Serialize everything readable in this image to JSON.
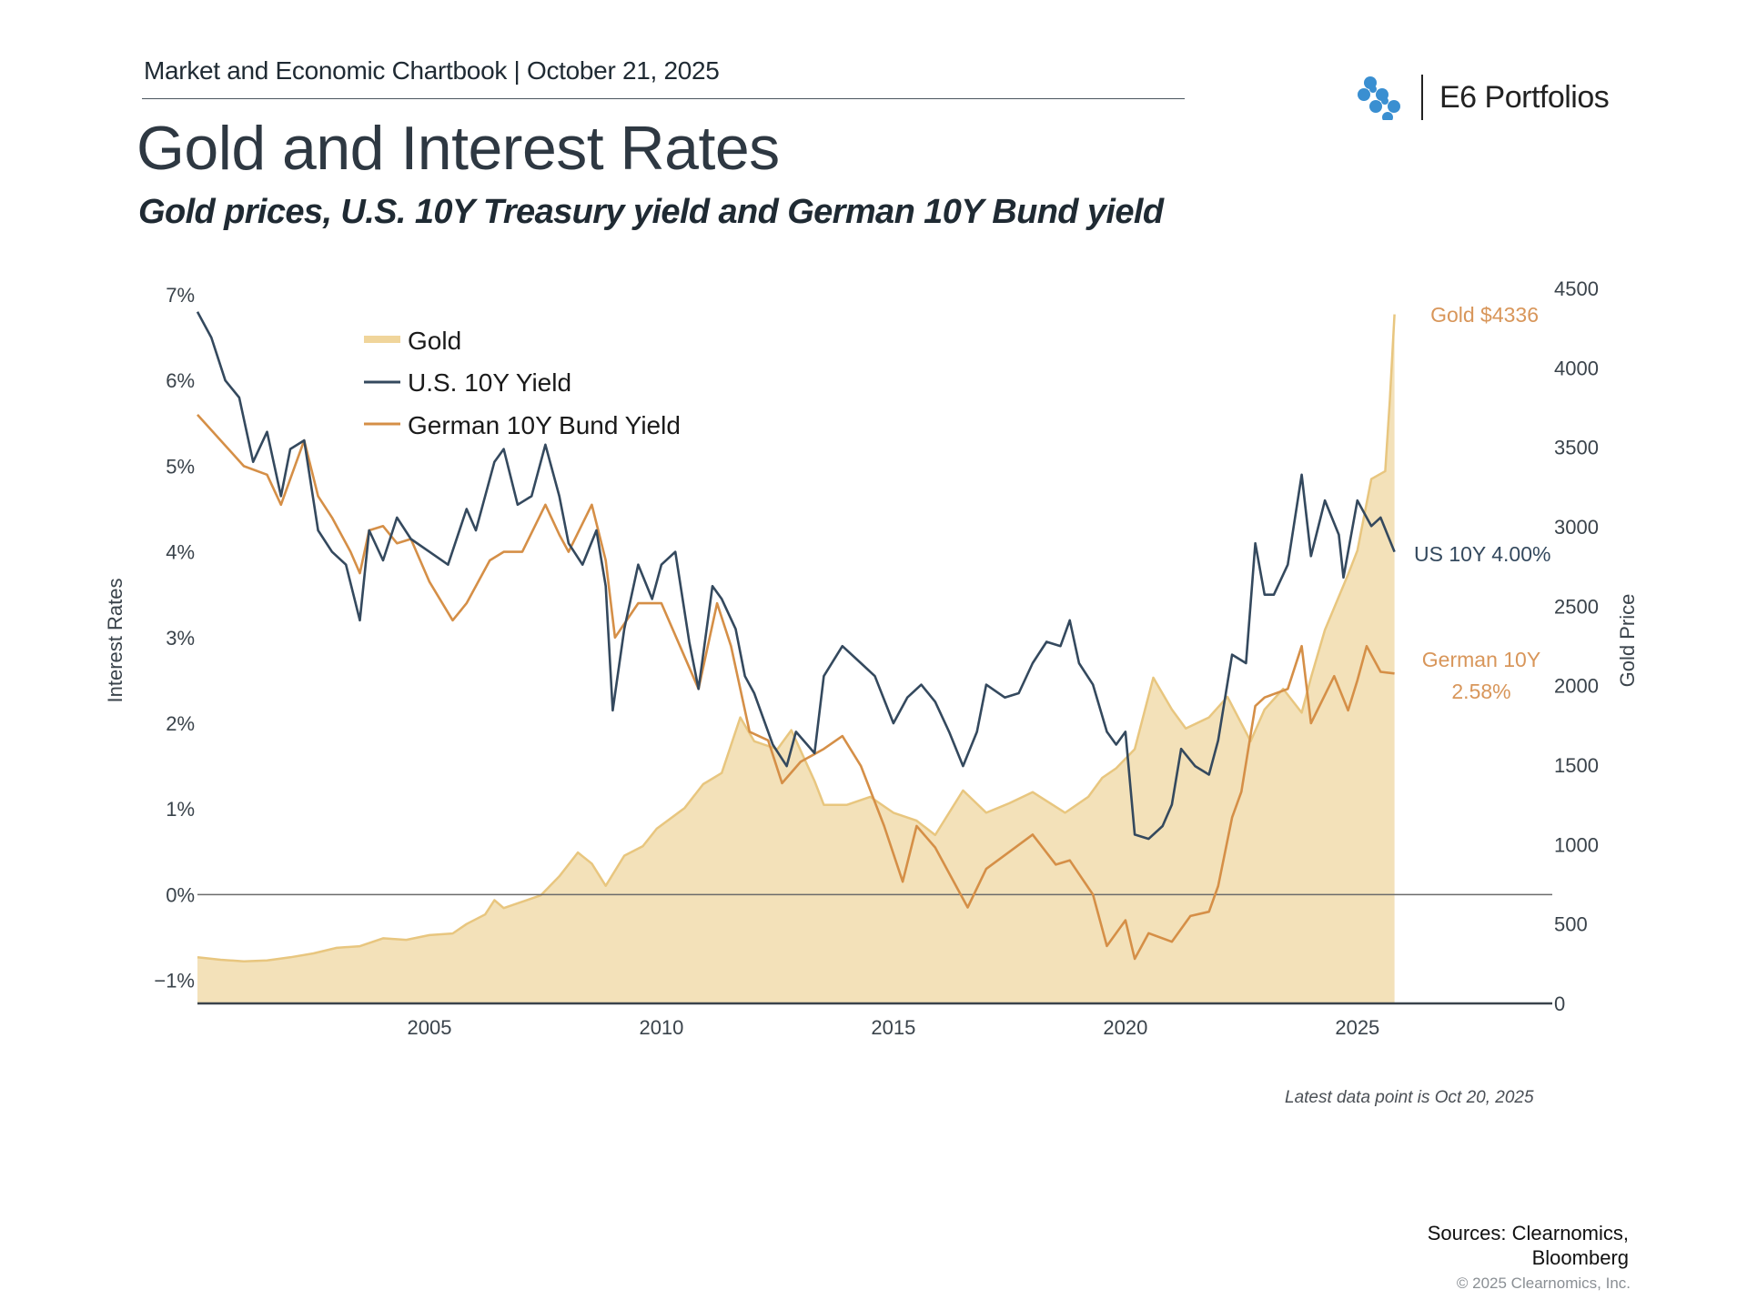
{
  "header": {
    "kicker": "Market and Economic Chartbook | October 21, 2025",
    "title": "Gold and Interest Rates",
    "subtitle": "Gold prices, U.S. 10Y Treasury yield and German 10Y Bund yield",
    "logo_text": "E6 Portfolios"
  },
  "colors": {
    "us10y": "#34495e",
    "german10y": "#d58f47",
    "gold_line": "#e8c67f",
    "gold_fill": "#f3e1b9",
    "axis": "#3a434b",
    "zero_line": "#6b6b6b",
    "logo_blue": "#3a8fd1"
  },
  "chart_data": {
    "type": "line",
    "title": "Gold and Interest Rates",
    "subtitle": "Gold prices, U.S. 10Y Treasury yield and German 10Y Bund yield",
    "xlabel": "",
    "ylabel": "Interest Rates",
    "y2label": "Gold Price",
    "xlim": [
      2000.0,
      2029.2
    ],
    "ylim": [
      -1.27,
      7.0
    ],
    "y2lim": [
      0,
      4500
    ],
    "x_ticks": [
      2005,
      2010,
      2015,
      2020,
      2025
    ],
    "x_tick_labels": [
      "2005",
      "2010",
      "2015",
      "2020",
      "2025"
    ],
    "y_ticks": [
      7,
      6,
      5,
      4,
      3,
      2,
      1,
      0,
      -1
    ],
    "y_tick_labels": [
      "7%",
      "6%",
      "5%",
      "4%",
      "3%",
      "2%",
      "1%",
      "0%",
      "−1%"
    ],
    "y2_ticks": [
      4500,
      4000,
      3500,
      3000,
      2500,
      2000,
      1500,
      1000,
      500,
      0
    ],
    "y2_tick_labels": [
      "4500",
      "4000",
      "3500",
      "3000",
      "2500",
      "2000",
      "1500",
      "1000",
      "500",
      "0"
    ],
    "zero_line": 0,
    "grid": false,
    "legend_position": "top-left",
    "legend": [
      {
        "label": "Gold",
        "key": "gold"
      },
      {
        "label": "U.S. 10Y Yield",
        "key": "us10y"
      },
      {
        "label": "German 10Y Bund Yield",
        "key": "german10y"
      }
    ],
    "series": [
      {
        "name": "Gold",
        "key": "gold",
        "type": "area",
        "axis": "right",
        "x": [
          2000.0,
          2000.5,
          2001.0,
          2001.5,
          2002.0,
          2002.5,
          2003.0,
          2003.5,
          2004.0,
          2004.5,
          2005.0,
          2005.5,
          2005.8,
          2006.2,
          2006.4,
          2006.6,
          2007.0,
          2007.4,
          2007.8,
          2008.2,
          2008.5,
          2008.8,
          2009.2,
          2009.6,
          2009.9,
          2010.5,
          2010.9,
          2011.3,
          2011.7,
          2012.0,
          2012.5,
          2012.8,
          2013.3,
          2013.5,
          2014.0,
          2014.5,
          2015.0,
          2015.5,
          2015.9,
          2016.5,
          2017.0,
          2017.5,
          2018.0,
          2018.7,
          2019.2,
          2019.5,
          2019.8,
          2020.2,
          2020.6,
          2021.0,
          2021.3,
          2021.8,
          2022.2,
          2022.7,
          2023.0,
          2023.4,
          2023.8,
          2024.0,
          2024.3,
          2024.8,
          2025.0,
          2025.3,
          2025.6,
          2025.7,
          2025.8
        ],
        "values": [
          290,
          275,
          265,
          270,
          290,
          315,
          350,
          360,
          410,
          400,
          430,
          440,
          500,
          560,
          650,
          600,
          640,
          680,
          800,
          950,
          880,
          740,
          930,
          990,
          1100,
          1230,
          1380,
          1450,
          1800,
          1650,
          1600,
          1720,
          1400,
          1250,
          1250,
          1300,
          1200,
          1150,
          1060,
          1340,
          1200,
          1260,
          1330,
          1200,
          1300,
          1420,
          1480,
          1600,
          2050,
          1850,
          1730,
          1800,
          1930,
          1650,
          1850,
          1980,
          1830,
          2050,
          2350,
          2700,
          2850,
          3300,
          3350,
          3800,
          4336
        ]
      },
      {
        "name": "U.S. 10Y Yield",
        "key": "us10y",
        "type": "line",
        "axis": "left",
        "x": [
          2000.0,
          2000.3,
          2000.6,
          2000.9,
          2001.2,
          2001.5,
          2001.8,
          2002.0,
          2002.3,
          2002.6,
          2002.9,
          2003.2,
          2003.5,
          2003.7,
          2004.0,
          2004.3,
          2004.6,
          2005.0,
          2005.4,
          2005.8,
          2006.0,
          2006.4,
          2006.6,
          2006.9,
          2007.2,
          2007.5,
          2007.8,
          2008.0,
          2008.3,
          2008.6,
          2008.8,
          2008.95,
          2009.2,
          2009.5,
          2009.8,
          2010.0,
          2010.3,
          2010.6,
          2010.8,
          2011.1,
          2011.3,
          2011.6,
          2011.8,
          2012.0,
          2012.4,
          2012.7,
          2012.9,
          2013.3,
          2013.5,
          2013.9,
          2014.3,
          2014.6,
          2015.0,
          2015.3,
          2015.6,
          2015.9,
          2016.2,
          2016.5,
          2016.8,
          2017.0,
          2017.4,
          2017.7,
          2018.0,
          2018.3,
          2018.6,
          2018.8,
          2019.0,
          2019.3,
          2019.6,
          2019.8,
          2020.0,
          2020.2,
          2020.5,
          2020.8,
          2021.0,
          2021.2,
          2021.5,
          2021.8,
          2022.0,
          2022.3,
          2022.6,
          2022.8,
          2023.0,
          2023.2,
          2023.5,
          2023.8,
          2024.0,
          2024.3,
          2024.6,
          2024.7,
          2025.0,
          2025.3,
          2025.5,
          2025.8
        ],
        "values": [
          6.8,
          6.5,
          6.0,
          5.8,
          5.05,
          5.4,
          4.65,
          5.2,
          5.3,
          4.25,
          4.0,
          3.85,
          3.2,
          4.25,
          3.9,
          4.4,
          4.15,
          4.0,
          3.85,
          4.5,
          4.25,
          5.05,
          5.2,
          4.55,
          4.65,
          5.25,
          4.65,
          4.1,
          3.85,
          4.25,
          3.6,
          2.15,
          3.1,
          3.85,
          3.45,
          3.85,
          4.0,
          2.95,
          2.4,
          3.6,
          3.45,
          3.1,
          2.55,
          2.35,
          1.75,
          1.5,
          1.9,
          1.65,
          2.55,
          2.9,
          2.7,
          2.55,
          2.0,
          2.3,
          2.45,
          2.25,
          1.9,
          1.5,
          1.9,
          2.45,
          2.3,
          2.35,
          2.7,
          2.95,
          2.9,
          3.2,
          2.7,
          2.45,
          1.9,
          1.75,
          1.9,
          0.7,
          0.65,
          0.8,
          1.05,
          1.7,
          1.5,
          1.4,
          1.8,
          2.8,
          2.7,
          4.1,
          3.5,
          3.5,
          3.85,
          4.9,
          3.95,
          4.6,
          4.2,
          3.7,
          4.6,
          4.3,
          4.4,
          4.0
        ]
      },
      {
        "name": "German 10Y Bund Yield",
        "key": "german10y",
        "type": "line",
        "axis": "left",
        "x": [
          2000.0,
          2000.5,
          2001.0,
          2001.5,
          2001.8,
          2002.3,
          2002.6,
          2002.9,
          2003.3,
          2003.5,
          2003.7,
          2004.0,
          2004.3,
          2004.6,
          2005.0,
          2005.5,
          2005.8,
          2006.3,
          2006.6,
          2007.0,
          2007.5,
          2007.8,
          2008.0,
          2008.5,
          2008.8,
          2009.0,
          2009.5,
          2010.0,
          2010.4,
          2010.8,
          2011.2,
          2011.5,
          2011.9,
          2012.3,
          2012.6,
          2013.0,
          2013.5,
          2013.9,
          2014.3,
          2014.8,
          2015.2,
          2015.5,
          2015.9,
          2016.3,
          2016.6,
          2017.0,
          2017.5,
          2018.0,
          2018.5,
          2018.8,
          2019.3,
          2019.6,
          2020.0,
          2020.2,
          2020.5,
          2021.0,
          2021.4,
          2021.8,
          2022.0,
          2022.3,
          2022.5,
          2022.8,
          2023.0,
          2023.5,
          2023.8,
          2024.0,
          2024.5,
          2024.8,
          2025.0,
          2025.2,
          2025.5,
          2025.8
        ],
        "values": [
          5.6,
          5.3,
          5.0,
          4.9,
          4.55,
          5.3,
          4.65,
          4.4,
          4.0,
          3.75,
          4.25,
          4.3,
          4.1,
          4.15,
          3.65,
          3.2,
          3.4,
          3.9,
          4.0,
          4.0,
          4.55,
          4.2,
          4.0,
          4.55,
          3.9,
          3.0,
          3.4,
          3.4,
          2.9,
          2.4,
          3.4,
          2.9,
          1.9,
          1.8,
          1.3,
          1.55,
          1.7,
          1.85,
          1.5,
          0.8,
          0.15,
          0.8,
          0.55,
          0.15,
          -0.15,
          0.3,
          0.5,
          0.7,
          0.35,
          0.4,
          0.0,
          -0.6,
          -0.3,
          -0.75,
          -0.45,
          -0.55,
          -0.25,
          -0.2,
          0.1,
          0.9,
          1.2,
          2.2,
          2.3,
          2.4,
          2.9,
          2.0,
          2.55,
          2.15,
          2.5,
          2.9,
          2.6,
          2.58
        ]
      }
    ],
    "annotations": [
      {
        "text": "Gold $4336",
        "series": "gold"
      },
      {
        "text": "US 10Y 4.00%",
        "series": "us10y"
      },
      {
        "text": "German 10Y",
        "series": "german10y"
      },
      {
        "text": "2.58%",
        "series": "german10y"
      }
    ]
  },
  "footer": {
    "note": "Latest data point is Oct 20, 2025",
    "sources_line1": "Sources: Clearnomics,",
    "sources_line2": "Bloomberg",
    "copyright": "© 2025 Clearnomics, Inc."
  }
}
